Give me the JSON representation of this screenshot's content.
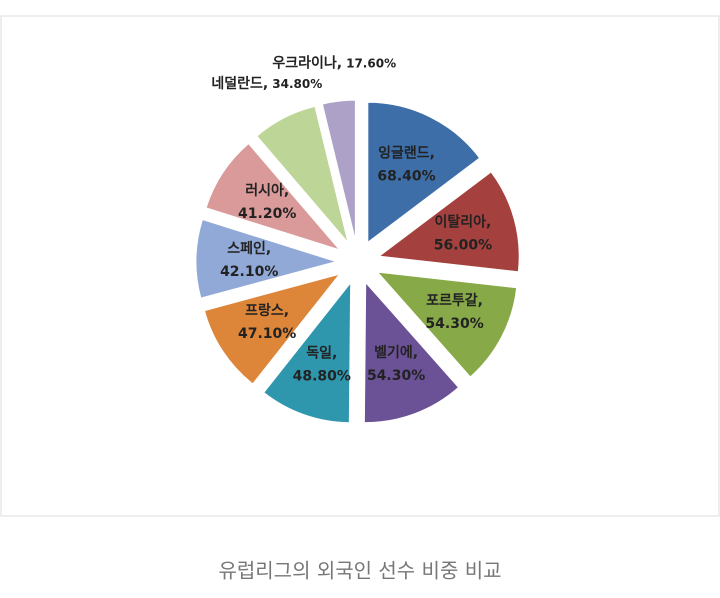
{
  "chart_data": {
    "type": "pie",
    "categories": [
      "잉글랜드,",
      "이탈리아,",
      "포르투갈,",
      "벨기에,",
      "독일,",
      "프랑스,",
      "스페인,",
      "러시아,",
      "네덜란드,",
      "우크라이나,"
    ],
    "values": [
      68.4,
      56.0,
      54.3,
      54.3,
      48.8,
      47.1,
      42.1,
      41.2,
      34.8,
      17.6
    ],
    "value_labels": [
      "68.40%",
      "56.00%",
      "54.30%",
      "54.30%",
      "48.80%",
      "47.10%",
      "42.10%",
      "41.20%",
      "34.80%",
      "17.60%"
    ],
    "colors": [
      "#3d6ea8",
      "#a4403d",
      "#87a947",
      "#6b5195",
      "#2f97ad",
      "#dd8538",
      "#91a9d6",
      "#d99a99",
      "#bdd596",
      "#ada1c7"
    ],
    "caption": "유럽리그의 외국인 선수 비중 비교"
  }
}
